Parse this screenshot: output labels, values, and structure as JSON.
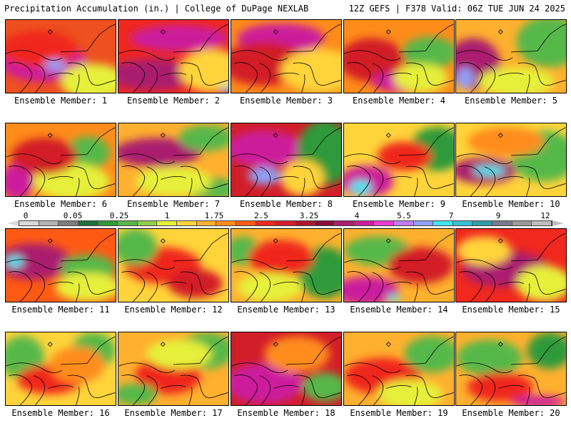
{
  "header": {
    "title_left": "Precipitation Accumulation (in.) | College of DuPage NEXLAB",
    "title_right": "12Z GEFS | F378 Valid: 06Z TUE JUN 24 2025"
  },
  "colorbar": {
    "tick_labels": [
      "0",
      "0.05",
      "0.25",
      "1",
      "1.75",
      "2.5",
      "3.25",
      "4",
      "5.5",
      "7",
      "9",
      "12"
    ],
    "colors": [
      "#d9d9d9",
      "#b4b4b4",
      "#7e7e7e",
      "#1f6f38",
      "#2f9a3a",
      "#57b84a",
      "#92cf4b",
      "#e6f03a",
      "#ffd43a",
      "#ffb02e",
      "#ff8c1a",
      "#ff5a14",
      "#f0281e",
      "#d21e28",
      "#b0142e",
      "#8e0c3a",
      "#aa1e6e",
      "#cc1e9c",
      "#e83cd4",
      "#c27cf2",
      "#8fa0f8",
      "#3ee6f2",
      "#36c2d4",
      "#2e9ea8",
      "#767a8c",
      "#9a9a9a",
      "#bebebe"
    ],
    "arrow_left_color": "#d9d9d9",
    "arrow_right_color": "#bebebe"
  },
  "panels": [
    {
      "label": "Ensemble Member: 1",
      "base": "#ee5020",
      "blobs": [
        [
          "#cc1e9c",
          0.35,
          0.6,
          0.4,
          0.25
        ],
        [
          "#f0281e",
          0.3,
          0.4,
          0.35,
          0.25
        ],
        [
          "#e6f03a",
          0.8,
          0.85,
          0.3,
          0.25
        ],
        [
          "#8fa0f8",
          0.45,
          0.62,
          0.1,
          0.08
        ]
      ]
    },
    {
      "label": "Ensemble Member: 2",
      "base": "#f0281e",
      "blobs": [
        [
          "#cc1e9c",
          0.55,
          0.25,
          0.45,
          0.18
        ],
        [
          "#aa1e6e",
          0.3,
          0.75,
          0.4,
          0.22
        ],
        [
          "#ffd43a",
          0.85,
          0.7,
          0.3,
          0.3
        ],
        [
          "#3ee6f2",
          0.98,
          0.95,
          0.05,
          0.05
        ]
      ]
    },
    {
      "label": "Ensemble Member: 3",
      "base": "#ff8c1a",
      "blobs": [
        [
          "#cc1e9c",
          0.45,
          0.25,
          0.4,
          0.2
        ],
        [
          "#d21e28",
          0.3,
          0.6,
          0.4,
          0.3
        ],
        [
          "#ffd43a",
          0.8,
          0.7,
          0.35,
          0.3
        ]
      ]
    },
    {
      "label": "Ensemble Member: 4",
      "base": "#ff8c1a",
      "blobs": [
        [
          "#57b84a",
          0.78,
          0.45,
          0.25,
          0.22
        ],
        [
          "#d21e28",
          0.25,
          0.55,
          0.3,
          0.3
        ],
        [
          "#cc1e9c",
          0.55,
          0.85,
          0.3,
          0.15
        ],
        [
          "#e6f03a",
          0.7,
          0.8,
          0.25,
          0.2
        ]
      ]
    },
    {
      "label": "Ensemble Member: 5",
      "base": "#ffb02e",
      "blobs": [
        [
          "#57b84a",
          0.85,
          0.3,
          0.3,
          0.35
        ],
        [
          "#aa1e6e",
          0.15,
          0.6,
          0.25,
          0.35
        ],
        [
          "#8fa0f8",
          0.08,
          0.8,
          0.08,
          0.15
        ],
        [
          "#e6f03a",
          0.55,
          0.85,
          0.35,
          0.2
        ]
      ]
    },
    {
      "label": "Ensemble Member: 6",
      "base": "#ff8c1a",
      "blobs": [
        [
          "#cc1e9c",
          0.1,
          0.8,
          0.15,
          0.25
        ],
        [
          "#57b84a",
          0.75,
          0.4,
          0.2,
          0.22
        ],
        [
          "#e6f03a",
          0.6,
          0.8,
          0.35,
          0.25
        ],
        [
          "#d21e28",
          0.35,
          0.45,
          0.3,
          0.25
        ]
      ]
    },
    {
      "label": "Ensemble Member: 7",
      "base": "#ffb02e",
      "blobs": [
        [
          "#aa1e6e",
          0.35,
          0.4,
          0.4,
          0.2
        ],
        [
          "#57b84a",
          0.8,
          0.2,
          0.25,
          0.18
        ],
        [
          "#57b84a",
          0.85,
          0.9,
          0.25,
          0.15
        ],
        [
          "#e6f03a",
          0.5,
          0.8,
          0.35,
          0.2
        ]
      ]
    },
    {
      "label": "Ensemble Member: 8",
      "base": "#d21e28",
      "blobs": [
        [
          "#cc1e9c",
          0.3,
          0.35,
          0.35,
          0.25
        ],
        [
          "#8fa0f8",
          0.3,
          0.72,
          0.15,
          0.12
        ],
        [
          "#2f9a3a",
          0.85,
          0.4,
          0.25,
          0.45
        ],
        [
          "#ffd43a",
          0.65,
          0.75,
          0.2,
          0.25
        ]
      ]
    },
    {
      "label": "Ensemble Member: 9",
      "base": "#ffd43a",
      "blobs": [
        [
          "#cc1e9c",
          0.2,
          0.8,
          0.25,
          0.22
        ],
        [
          "#3ee6f2",
          0.15,
          0.88,
          0.1,
          0.1
        ],
        [
          "#2f9a3a",
          0.85,
          0.35,
          0.25,
          0.3
        ],
        [
          "#f0281e",
          0.55,
          0.45,
          0.25,
          0.2
        ]
      ]
    },
    {
      "label": "Ensemble Member: 10",
      "base": "#ffd43a",
      "blobs": [
        [
          "#aa1e6e",
          0.25,
          0.65,
          0.3,
          0.18
        ],
        [
          "#3ee6f2",
          0.3,
          0.65,
          0.15,
          0.07
        ],
        [
          "#57b84a",
          0.8,
          0.45,
          0.3,
          0.35
        ],
        [
          "#ff8c1a",
          0.45,
          0.25,
          0.35,
          0.2
        ]
      ]
    },
    {
      "label": "Ensemble Member: 11",
      "base": "#ff5a14",
      "blobs": [
        [
          "#aa1e6e",
          0.25,
          0.45,
          0.35,
          0.25
        ],
        [
          "#3ee6f2",
          0.08,
          0.45,
          0.08,
          0.08
        ],
        [
          "#57b84a",
          0.75,
          0.55,
          0.25,
          0.2
        ],
        [
          "#e6f03a",
          0.75,
          0.8,
          0.3,
          0.2
        ]
      ]
    },
    {
      "label": "Ensemble Member: 12",
      "base": "#ffd43a",
      "blobs": [
        [
          "#f0281e",
          0.4,
          0.5,
          0.35,
          0.25
        ],
        [
          "#57b84a",
          0.15,
          0.25,
          0.2,
          0.25
        ],
        [
          "#d21e28",
          0.7,
          0.75,
          0.25,
          0.2
        ]
      ]
    },
    {
      "label": "Ensemble Member: 13",
      "base": "#ffb02e",
      "blobs": [
        [
          "#2f9a3a",
          0.85,
          0.6,
          0.25,
          0.35
        ],
        [
          "#57b84a",
          0.1,
          0.3,
          0.15,
          0.2
        ],
        [
          "#f0281e",
          0.45,
          0.4,
          0.3,
          0.25
        ],
        [
          "#e6f03a",
          0.35,
          0.8,
          0.3,
          0.2
        ]
      ]
    },
    {
      "label": "Ensemble Member: 14",
      "base": "#ffb02e",
      "blobs": [
        [
          "#cc1e9c",
          0.2,
          0.85,
          0.3,
          0.2
        ],
        [
          "#3ee6f2",
          0.45,
          0.95,
          0.06,
          0.05
        ],
        [
          "#57b84a",
          0.3,
          0.3,
          0.3,
          0.2
        ],
        [
          "#d21e28",
          0.7,
          0.5,
          0.3,
          0.25
        ]
      ]
    },
    {
      "label": "Ensemble Member: 15",
      "base": "#f0281e",
      "blobs": [
        [
          "#aa1e6e",
          0.45,
          0.55,
          0.4,
          0.25
        ],
        [
          "#ffd43a",
          0.25,
          0.3,
          0.25,
          0.2
        ],
        [
          "#e6f03a",
          0.8,
          0.75,
          0.25,
          0.25
        ]
      ]
    },
    {
      "label": "Ensemble Member: 16",
      "base": "#ffd43a",
      "blobs": [
        [
          "#57b84a",
          0.15,
          0.35,
          0.2,
          0.3
        ],
        [
          "#57b84a",
          0.8,
          0.25,
          0.2,
          0.25
        ],
        [
          "#f0281e",
          0.4,
          0.65,
          0.3,
          0.2
        ],
        [
          "#ff8c1a",
          0.65,
          0.45,
          0.25,
          0.25
        ]
      ]
    },
    {
      "label": "Ensemble Member: 17",
      "base": "#ffb02e",
      "blobs": [
        [
          "#f0281e",
          0.45,
          0.6,
          0.3,
          0.25
        ],
        [
          "#57b84a",
          0.8,
          0.25,
          0.25,
          0.25
        ],
        [
          "#57b84a",
          0.15,
          0.85,
          0.2,
          0.15
        ],
        [
          "#e6f03a",
          0.55,
          0.3,
          0.3,
          0.2
        ]
      ]
    },
    {
      "label": "Ensemble Member: 18",
      "base": "#d21e28",
      "blobs": [
        [
          "#cc1e9c",
          0.3,
          0.7,
          0.35,
          0.28
        ],
        [
          "#ff8c1a",
          0.6,
          0.3,
          0.3,
          0.25
        ],
        [
          "#57b84a",
          0.85,
          0.75,
          0.2,
          0.2
        ]
      ]
    },
    {
      "label": "Ensemble Member: 19",
      "base": "#ffb02e",
      "blobs": [
        [
          "#f0281e",
          0.35,
          0.6,
          0.35,
          0.25
        ],
        [
          "#57b84a",
          0.8,
          0.3,
          0.25,
          0.25
        ],
        [
          "#e6f03a",
          0.6,
          0.85,
          0.3,
          0.2
        ]
      ]
    },
    {
      "label": "Ensemble Member: 20",
      "base": "#ffb02e",
      "blobs": [
        [
          "#57b84a",
          0.3,
          0.35,
          0.3,
          0.25
        ],
        [
          "#2f9a3a",
          0.85,
          0.25,
          0.2,
          0.25
        ],
        [
          "#f0281e",
          0.4,
          0.75,
          0.3,
          0.2
        ],
        [
          "#cc1e9c",
          0.75,
          0.95,
          0.25,
          0.08
        ]
      ]
    }
  ]
}
